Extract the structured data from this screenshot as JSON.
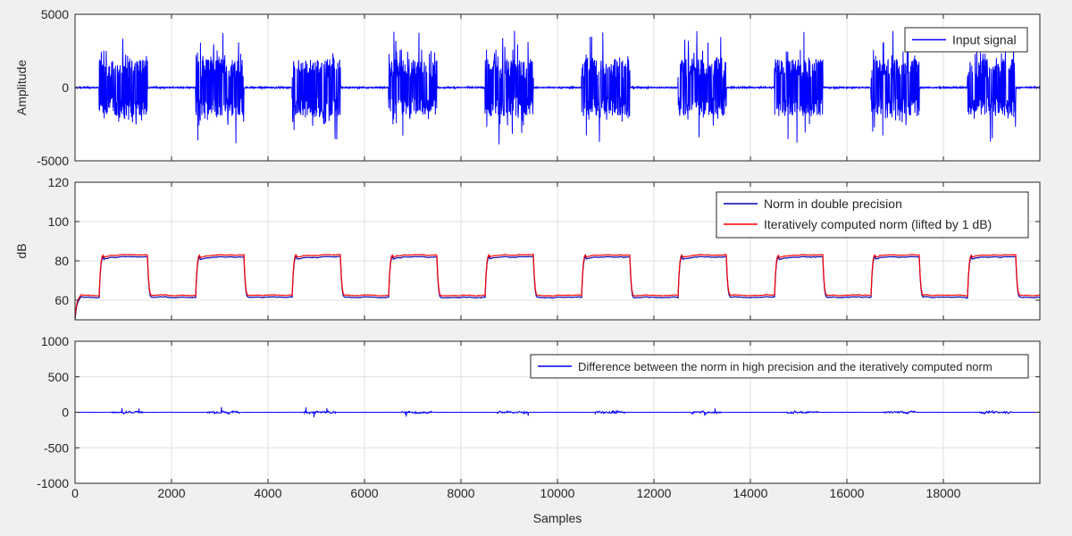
{
  "chart_data": [
    {
      "type": "line",
      "ylabel": "Amplitude",
      "xlabel": "",
      "xlim": [
        0,
        20000
      ],
      "ylim": [
        -5000,
        5000
      ],
      "xticks": [
        0,
        2000,
        4000,
        6000,
        8000,
        10000,
        12000,
        14000,
        16000,
        18000
      ],
      "yticks": [
        -5000,
        0,
        5000
      ],
      "show_xtick_labels": false,
      "grid": true,
      "legend_position": "top-right",
      "series": [
        {
          "name": "Input signal",
          "color": "#0000ff",
          "bursts": [
            [
              500,
              1500
            ],
            [
              2500,
              3500
            ],
            [
              4500,
              5500
            ],
            [
              6500,
              7500
            ],
            [
              8500,
              9500
            ],
            [
              10500,
              11500
            ],
            [
              12500,
              13500
            ],
            [
              14500,
              15500
            ],
            [
              16500,
              17500
            ],
            [
              18500,
              19500
            ]
          ],
          "burst_typical_amplitude": 1300,
          "burst_peak_amplitude": 3900,
          "quiet_amplitude": 100
        }
      ]
    },
    {
      "type": "line",
      "ylabel": "dB",
      "xlabel": "",
      "xlim": [
        0,
        20000
      ],
      "ylim": [
        50,
        120
      ],
      "xticks": [
        0,
        2000,
        4000,
        6000,
        8000,
        10000,
        12000,
        14000,
        16000,
        18000
      ],
      "yticks": [
        60,
        80,
        100,
        120
      ],
      "show_xtick_labels": false,
      "grid": true,
      "legend_position": "top-right",
      "series": [
        {
          "name": "Norm in double precision",
          "color": "#0000b0",
          "high_level": 82,
          "low_level": 61.5,
          "start_level": 50
        },
        {
          "name": "Iteratively computed norm (lifted by 1 dB)",
          "color": "#ff0000",
          "high_level": 83,
          "low_level": 62.5,
          "start_level": 51
        }
      ]
    },
    {
      "type": "line",
      "ylabel": "",
      "xlabel": "Samples",
      "xlim": [
        0,
        20000
      ],
      "ylim": [
        -1000,
        1000
      ],
      "xticks": [
        0,
        2000,
        4000,
        6000,
        8000,
        10000,
        12000,
        14000,
        16000,
        18000
      ],
      "yticks": [
        -1000,
        -500,
        0,
        500,
        1000
      ],
      "show_xtick_labels": true,
      "grid": true,
      "legend_position": "top-right",
      "series": [
        {
          "name": "Difference between the norm in high precision and the iteratively computed norm",
          "color": "#0000ff",
          "typical_abs": 25,
          "peak_abs": 75
        }
      ]
    }
  ]
}
